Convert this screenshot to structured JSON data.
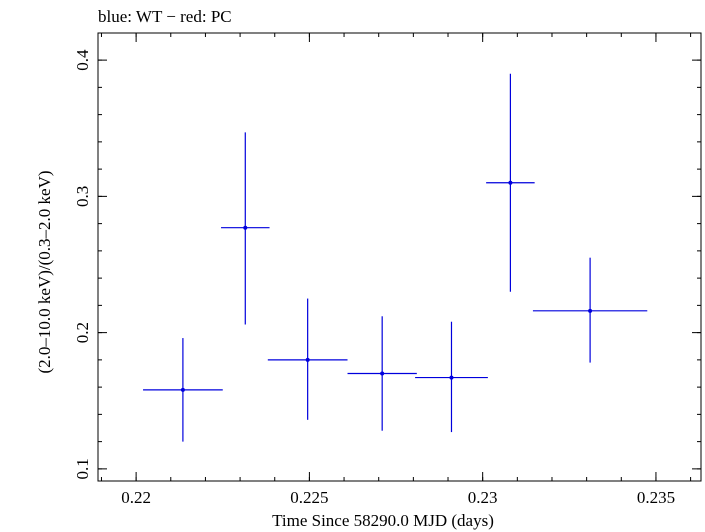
{
  "chart_data": {
    "type": "scatter",
    "title": "blue: WT − red: PC",
    "xlabel": "Time Since 58290.0 MJD (days)",
    "ylabel": "(2.0–10.0 keV)/(0.3–2.0 keV)",
    "xlim": [
      0.2189,
      0.2363
    ],
    "ylim": [
      0.0911,
      0.4199
    ],
    "x_ticks": [
      0.22,
      0.225,
      0.23,
      0.235
    ],
    "x_tick_labels": [
      "0.22",
      "0.225",
      "0.23",
      "0.235"
    ],
    "y_ticks": [
      0.1,
      0.2,
      0.3,
      0.4
    ],
    "y_tick_labels": [
      "0.1",
      "0.2",
      "0.3",
      "0.4"
    ],
    "grid": false,
    "series": [
      {
        "color": "#0000dd",
        "points": [
          {
            "x": 0.22135,
            "xerr": 0.00115,
            "y": 0.158,
            "yerr_low": 0.038,
            "yerr_high": 0.038
          },
          {
            "x": 0.22315,
            "xerr": 0.0007,
            "y": 0.277,
            "yerr_low": 0.071,
            "yerr_high": 0.07
          },
          {
            "x": 0.22495,
            "xerr": 0.00115,
            "y": 0.18,
            "yerr_low": 0.044,
            "yerr_high": 0.045
          },
          {
            "x": 0.2271,
            "xerr": 0.001,
            "y": 0.17,
            "yerr_low": 0.042,
            "yerr_high": 0.042
          },
          {
            "x": 0.2291,
            "xerr": 0.00105,
            "y": 0.167,
            "yerr_low": 0.04,
            "yerr_high": 0.041
          },
          {
            "x": 0.2308,
            "xerr": 0.0007,
            "y": 0.31,
            "yerr_low": 0.08,
            "yerr_high": 0.08
          },
          {
            "x": 0.2331,
            "xerr": 0.00165,
            "y": 0.216,
            "yerr_low": 0.038,
            "yerr_high": 0.039
          }
        ]
      }
    ]
  }
}
